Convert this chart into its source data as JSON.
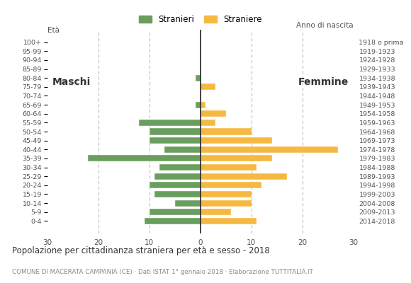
{
  "age_groups": [
    "0-4",
    "5-9",
    "10-14",
    "15-19",
    "20-24",
    "25-29",
    "30-34",
    "35-39",
    "40-44",
    "45-49",
    "50-54",
    "55-59",
    "60-64",
    "65-69",
    "70-74",
    "75-79",
    "80-84",
    "85-89",
    "90-94",
    "95-99",
    "100+"
  ],
  "birth_years": [
    "2014-2018",
    "2009-2013",
    "2004-2008",
    "1999-2003",
    "1994-1998",
    "1989-1993",
    "1984-1988",
    "1979-1983",
    "1974-1978",
    "1969-1973",
    "1964-1968",
    "1959-1963",
    "1954-1958",
    "1949-1953",
    "1944-1948",
    "1939-1943",
    "1934-1938",
    "1929-1933",
    "1924-1928",
    "1919-1923",
    "1918 o prima"
  ],
  "males": [
    11,
    10,
    5,
    9,
    10,
    9,
    8,
    22,
    7,
    10,
    10,
    12,
    0,
    1,
    0,
    0,
    1,
    0,
    0,
    0,
    0
  ],
  "females": [
    11,
    6,
    10,
    10,
    12,
    17,
    11,
    14,
    27,
    14,
    10,
    3,
    5,
    1,
    0,
    3,
    0,
    0,
    0,
    0,
    0
  ],
  "male_color": "#6a9e5e",
  "female_color": "#f5b942",
  "background_color": "#ffffff",
  "grid_color": "#bbbbbb",
  "xlim": 30,
  "title": "Popolazione per cittadinanza straniera per età e sesso - 2018",
  "subtitle": "COMUNE DI MACERATA CAMPANIA (CE) · Dati ISTAT 1° gennaio 2018 · Elaborazione TUTTITALIA.IT",
  "legend_male": "Stranieri",
  "legend_female": "Straniere",
  "xlabel_left": "Età",
  "anno_nascita": "Anno di nascita",
  "label_maschi": "Maschi",
  "label_femmine": "Femmine"
}
